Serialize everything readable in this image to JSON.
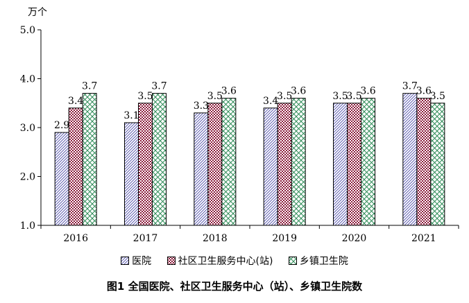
{
  "chart_data": {
    "type": "bar",
    "title": "图1 全国医院、社区卫生服务中心（站）、乡镇卫生院数",
    "ylabel": "万个",
    "xlabel": "",
    "ylim": [
      1.0,
      5.0
    ],
    "yticks": [
      "1.0",
      "2.0",
      "3.0",
      "4.0",
      "5.0"
    ],
    "categories": [
      "2016",
      "2017",
      "2018",
      "2019",
      "2020",
      "2021"
    ],
    "series": [
      {
        "name": "医院",
        "values": [
          2.9,
          3.1,
          3.3,
          3.4,
          3.5,
          3.7
        ],
        "labels": [
          "2.9",
          "3.1",
          "3.3",
          "3.4",
          "3.5",
          "3.7"
        ],
        "color": "#4040a0",
        "pattern": "hatch-blue"
      },
      {
        "name": "社区卫生服务中心(站)",
        "values": [
          3.4,
          3.5,
          3.5,
          3.5,
          3.5,
          3.6
        ],
        "labels": [
          "3.4",
          "3.5",
          "3.5",
          "3.5",
          "3.5",
          "3.6"
        ],
        "color": "#8b1a3a",
        "pattern": "check-maroon"
      },
      {
        "name": "乡镇卫生院",
        "values": [
          3.7,
          3.7,
          3.6,
          3.6,
          3.6,
          3.5
        ],
        "labels": [
          "3.7",
          "3.7",
          "3.6",
          "3.6",
          "3.6",
          "3.5"
        ],
        "color": "#2e8b57",
        "pattern": "diamond-green"
      }
    ],
    "grid": false,
    "legend_position": "bottom"
  }
}
